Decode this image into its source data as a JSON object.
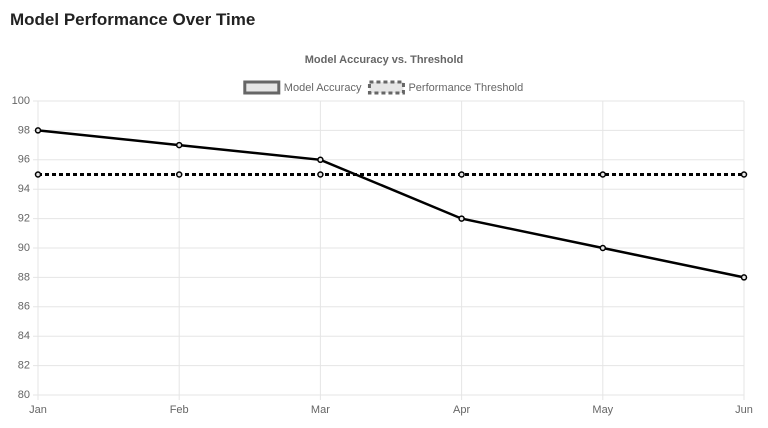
{
  "heading": "Model Performance Over Time",
  "chart_data": {
    "type": "line",
    "title": "Model Accuracy vs. Threshold",
    "categories": [
      "Jan",
      "Feb",
      "Mar",
      "Apr",
      "May",
      "Jun"
    ],
    "series": [
      {
        "name": "Model Accuracy",
        "color": "#000000",
        "line_style": "solid",
        "values": [
          98,
          97,
          96,
          92,
          90,
          88
        ]
      },
      {
        "name": "Performance Threshold",
        "color": "#000000",
        "line_style": "dashed",
        "values": [
          95,
          95,
          95,
          95,
          95,
          95
        ]
      }
    ],
    "ylim": [
      80,
      100
    ],
    "yticks": [
      80,
      82,
      84,
      86,
      88,
      90,
      92,
      94,
      96,
      98,
      100
    ],
    "grid": true,
    "legend": "top"
  }
}
